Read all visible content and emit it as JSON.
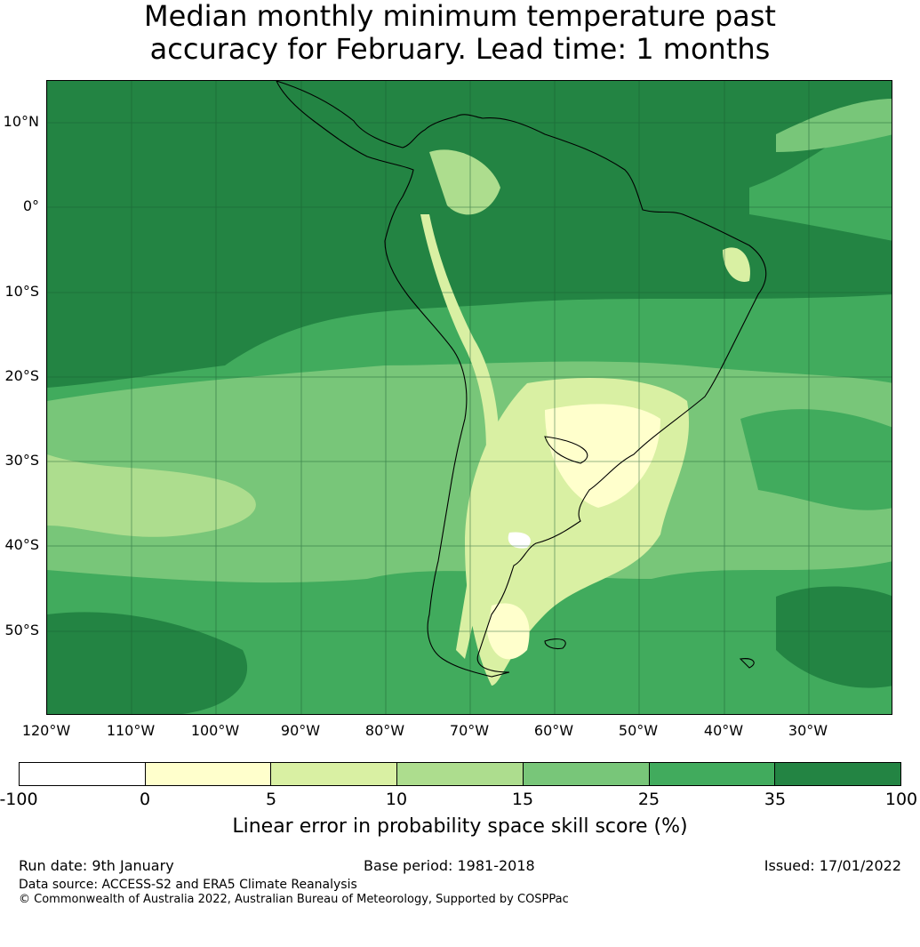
{
  "title": {
    "line1": "Median monthly minimum temperature past",
    "line2": "accuracy for February. Lead time: 1 months"
  },
  "map": {
    "lat_labels": [
      "10°N",
      "0°",
      "10°S",
      "20°S",
      "30°S",
      "40°S",
      "50°S"
    ],
    "lon_labels": [
      "120°W",
      "110°W",
      "100°W",
      "90°W",
      "80°W",
      "70°W",
      "60°W",
      "50°W",
      "40°W",
      "30°W"
    ],
    "lon_range": [
      -120,
      -20
    ],
    "lat_range": [
      -60,
      15
    ],
    "land_outline_color": "#000000",
    "grid_color": "#1a5c32"
  },
  "colorbar": {
    "ticks": [
      "-100",
      "0",
      "5",
      "10",
      "15",
      "25",
      "35",
      "100"
    ],
    "colors": [
      "#ffffff",
      "#ffffcc",
      "#d9f0a3",
      "#addd8e",
      "#78c679",
      "#41ab5d",
      "#238443"
    ],
    "label": "Linear error in probability space skill score (%)"
  },
  "footer": {
    "run_date": "Run date: 9th January",
    "base_period": "Base period: 1981-2018",
    "issued": "Issued: 17/01/2022",
    "data_source": "Data source: ACCESS-S2 and ERA5 Climate Reanalysis",
    "copyright": "© Commonwealth of Australia 2022, Australian Bureau of Meteorology, Supported by COSPPac"
  }
}
